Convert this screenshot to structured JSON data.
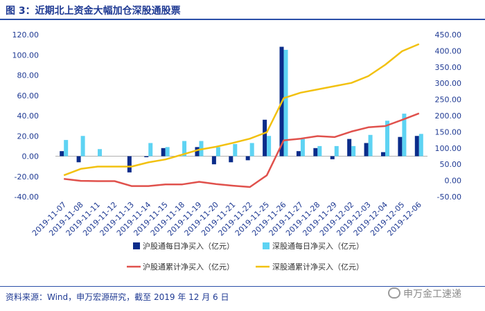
{
  "figure": {
    "title": "图 3：近期北上资金大幅加仓深股通股票",
    "source": "资料来源：Wind，申万宏源研究，截至 2019 年 12 月 6 日",
    "watermark": "申万金工速递"
  },
  "chart_data": {
    "type": "bar+line",
    "categories": [
      "2019-11-07",
      "2019-11-08",
      "2019-11-11",
      "2019-11-12",
      "2019-11-13",
      "2019-11-14",
      "2019-11-15",
      "2019-11-18",
      "2019-11-19",
      "2019-11-20",
      "2019-11-21",
      "2019-11-22",
      "2019-11-25",
      "2019-11-26",
      "2019-11-27",
      "2019-11-28",
      "2019-11-29",
      "2019-12-02",
      "2019-12-03",
      "2019-12-04",
      "2019-12-05",
      "2019-12-06"
    ],
    "y_left": {
      "min": -40,
      "max": 120,
      "step": 20,
      "ticks": [
        "-40.00",
        "-20.00",
        "0.00",
        "20.00",
        "40.00",
        "60.00",
        "80.00",
        "100.00",
        "120.00"
      ]
    },
    "y_right": {
      "min": -50,
      "max": 450,
      "step": 50,
      "ticks": [
        "-50.00",
        "0.00",
        "50.00",
        "100.00",
        "150.00",
        "200.00",
        "250.00",
        "300.00",
        "350.00",
        "400.00",
        "450.00"
      ]
    },
    "series": [
      {
        "name": "沪股通每日净买入（亿元）",
        "type": "bar",
        "axis": "left",
        "color": "#0b2c8a",
        "values": [
          5,
          -6,
          0,
          0,
          -16,
          -1,
          8,
          0,
          9,
          -8,
          -6,
          -4,
          36,
          108,
          5,
          8,
          -3,
          17,
          13,
          4,
          19,
          20
        ]
      },
      {
        "name": "深股通每日净买入（亿元）",
        "type": "bar",
        "axis": "left",
        "color": "#5ed3f3",
        "values": [
          16,
          20,
          7,
          0,
          0,
          13,
          9,
          15,
          15,
          9,
          12,
          13,
          20,
          105,
          17,
          10,
          10,
          10,
          21,
          35,
          42,
          22
        ]
      },
      {
        "name": "沪股通累计净买入（亿元）",
        "type": "line",
        "axis": "right",
        "color": "#e0514c",
        "values": [
          5,
          -1,
          -2,
          -2,
          -17,
          -17,
          -12,
          -12,
          -4,
          -11,
          -16,
          -20,
          16,
          124,
          129,
          137,
          134,
          151,
          164,
          168,
          187,
          207
        ]
      },
      {
        "name": "深股通累计净买入（亿元）",
        "type": "line",
        "axis": "right",
        "color": "#f2c10f",
        "values": [
          16,
          36,
          43,
          43,
          43,
          56,
          65,
          80,
          95,
          104,
          116,
          129,
          149,
          254,
          271,
          281,
          291,
          301,
          322,
          357,
          399,
          421
        ]
      }
    ],
    "legend": {
      "sh_daily": "沪股通每日净买入（亿元）",
      "sz_daily": "深股通每日净买入（亿元）",
      "sh_cum": "沪股通累计净买入（亿元）",
      "sz_cum": "深股通累计净买入（亿元）"
    }
  }
}
